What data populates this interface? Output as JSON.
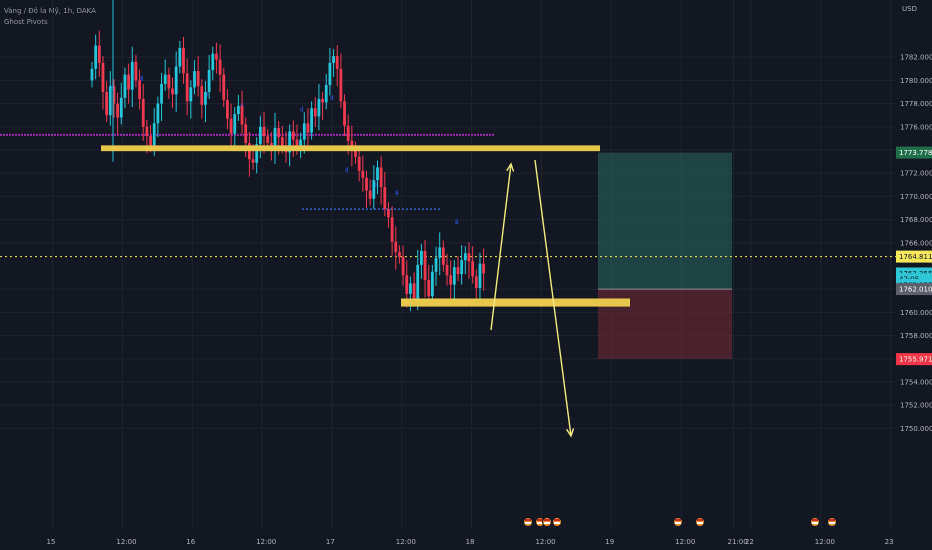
{
  "header": {
    "symbol": "Vàng / Đô la Mỹ, 1h, DAKA",
    "indicator": "Ghost Pivots"
  },
  "price_axis": {
    "currency": "USD",
    "ticks": [
      "1782.000",
      "1780.000",
      "1778.000",
      "1776.000",
      "1772.000",
      "1770.000",
      "1768.000",
      "1766.000",
      "1760.000",
      "1758.000",
      "1754.000",
      "1752.000",
      "1750.000"
    ],
    "tick_values": [
      1782,
      1780,
      1778,
      1776,
      1772,
      1770,
      1768,
      1766,
      1760,
      1758,
      1754,
      1752,
      1750
    ],
    "labels": [
      {
        "name": "tp-price-label",
        "text": "1773.778",
        "value": 1773.778,
        "bg": "#1e6f4a",
        "fg": "#ffffff"
      },
      {
        "name": "current-price-label",
        "text": "1764.811",
        "value": 1764.811,
        "bg": "#f7e95a",
        "fg": "#131722"
      },
      {
        "name": "bid-price-label",
        "text": "1763.355",
        "value": 1763.355,
        "bg": "#2fc6d6",
        "fg": "#131722"
      },
      {
        "name": "countdown-label",
        "text": "47:05",
        "value": 1762.86,
        "bg": "#2fc6d6",
        "fg": "#131722"
      },
      {
        "name": "ask-price-label",
        "text": "1763.355",
        "value": 1762.36,
        "bg": "#2fc6d6",
        "fg": "#131722"
      },
      {
        "name": "entry-price-label",
        "text": "1762.010",
        "value": 1762.01,
        "bg": "#5d606b",
        "fg": "#ffffff"
      },
      {
        "name": "sl-price-label",
        "text": "1755.971",
        "value": 1755.971,
        "bg": "#f23645",
        "fg": "#ffffff"
      }
    ]
  },
  "time_axis": {
    "labels": [
      "15",
      "12:00",
      "16",
      "12:00",
      "17",
      "12:00",
      "18",
      "12:00",
      "19",
      "12:00",
      "21:00",
      "22",
      "12:00",
      "23"
    ],
    "hour_index": [
      8,
      20,
      32,
      44,
      56,
      68,
      80,
      92,
      104,
      116,
      125,
      128,
      140,
      152
    ]
  },
  "levels": {
    "current_price": 1764.811,
    "resistance_zone": [
      1773.9,
      1774.4
    ],
    "support_zone": [
      1760.5,
      1761.2
    ],
    "pivot_high_line": 1775.3,
    "pivot_mid_line": 1768.9
  },
  "position": {
    "entry": 1762.01,
    "target": 1773.778,
    "stop": 1755.971
  },
  "colors": {
    "up": "#26c6da",
    "down": "#ef3950",
    "zone": "#e8c84a",
    "arrow": "#f2ec80",
    "pivot": "#9c27b0",
    "profit": "#2a6a5e",
    "loss": "#6d2a33"
  },
  "pivot_marks": [
    "8",
    "8",
    "8",
    "d",
    "d",
    "d",
    "d"
  ],
  "event_icons": [
    "flag-icon",
    "flag-icon",
    "flag-icon",
    "flag-icon",
    "flag-icon",
    "flag-icon",
    "flag-icon",
    "flag-icon"
  ]
}
